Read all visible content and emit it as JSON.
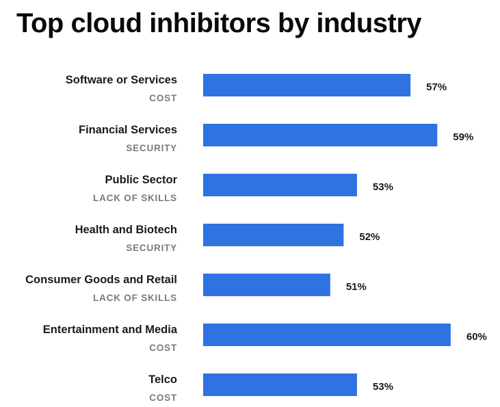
{
  "chart_data": {
    "type": "bar",
    "orientation": "horizontal",
    "title": "Top cloud inhibitors by industry",
    "xlabel": "",
    "ylabel": "",
    "value_suffix": "%",
    "grid": false,
    "legend": "none",
    "bar_color": "#2f72e2",
    "categories": [
      "Software or Services",
      "Financial Services",
      "Public Sector",
      "Health and Biotech",
      "Consumer Goods and Retail",
      "Entertainment and Media",
      "Telco"
    ],
    "inhibitors": [
      "COST",
      "SECURITY",
      "LACK OF SKILLS",
      "SECURITY",
      "LACK OF SKILLS",
      "COST",
      "COST"
    ],
    "values": [
      57,
      59,
      53,
      52,
      51,
      60,
      53
    ],
    "value_labels": [
      "57%",
      "59%",
      "53%",
      "52%",
      "51%",
      "60%",
      "53%"
    ]
  }
}
